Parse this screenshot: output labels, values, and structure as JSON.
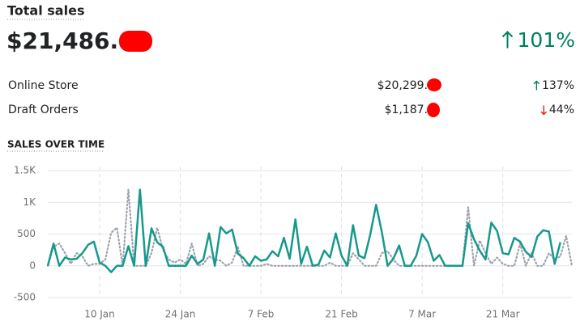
{
  "header": {
    "title": "Total sales",
    "total": "$21,486.",
    "change": "101%",
    "change_direction": "up"
  },
  "breakdown": [
    {
      "label": "Online Store",
      "value": "$20,299.",
      "change": "137%",
      "change_direction": "up"
    },
    {
      "label": "Draft Orders",
      "value": "$1,187.",
      "change": "44%",
      "change_direction": "down"
    }
  ],
  "chart_data": {
    "type": "line",
    "title": "SALES OVER TIME",
    "categories": [
      null,
      null,
      null,
      null,
      null,
      null,
      null,
      null,
      null,
      "10 Jan",
      null,
      null,
      null,
      null,
      null,
      null,
      null,
      null,
      null,
      null,
      null,
      null,
      null,
      "24 Jan",
      null,
      null,
      null,
      null,
      null,
      null,
      null,
      null,
      null,
      null,
      null,
      null,
      null,
      "7 Feb",
      null,
      null,
      null,
      null,
      null,
      null,
      null,
      null,
      null,
      null,
      null,
      null,
      null,
      "21 Feb",
      null,
      null,
      null,
      null,
      null,
      null,
      null,
      null,
      null,
      null,
      null,
      null,
      null,
      "7 Mar",
      null,
      null,
      null,
      null,
      null,
      null,
      null,
      null,
      null,
      null,
      null,
      null,
      null,
      "21 Mar",
      null,
      null,
      null,
      null,
      null,
      null,
      null,
      null,
      null,
      null,
      null,
      null
    ],
    "series": [
      {
        "color": "#16998c",
        "style": "solid",
        "values": [
          0,
          350,
          0,
          130,
          100,
          110,
          200,
          330,
          380,
          50,
          0,
          -100,
          0,
          0,
          310,
          0,
          1200,
          0,
          590,
          370,
          300,
          0,
          0,
          0,
          0,
          160,
          30,
          100,
          510,
          0,
          610,
          510,
          570,
          190,
          120,
          0,
          150,
          80,
          100,
          230,
          150,
          440,
          110,
          730,
          30,
          300,
          0,
          20,
          240,
          130,
          510,
          160,
          0,
          640,
          160,
          120,
          500,
          960,
          530,
          0,
          110,
          320,
          0,
          0,
          160,
          500,
          370,
          80,
          170,
          0,
          0,
          0,
          0,
          670,
          420,
          240,
          100,
          680,
          550,
          200,
          180,
          440,
          380,
          220,
          140,
          460,
          560,
          540,
          30,
          370,
          null,
          null
        ]
      },
      {
        "color": "#9ea3ad",
        "style": "dotted",
        "values": [
          0,
          300,
          350,
          200,
          30,
          200,
          150,
          0,
          30,
          30,
          100,
          520,
          600,
          0,
          1200,
          0,
          0,
          0,
          200,
          600,
          250,
          100,
          50,
          100,
          30,
          350,
          0,
          30,
          150,
          100,
          80,
          0,
          50,
          300,
          0,
          0,
          0,
          0,
          30,
          0,
          0,
          0,
          0,
          0,
          0,
          0,
          0,
          0,
          0,
          50,
          0,
          0,
          0,
          200,
          100,
          0,
          0,
          0,
          200,
          230,
          100,
          0,
          0,
          0,
          0,
          0,
          0,
          0,
          0,
          0,
          0,
          0,
          0,
          920,
          0,
          400,
          200,
          30,
          130,
          30,
          0,
          0,
          350,
          0,
          200,
          0,
          0,
          200,
          100,
          150,
          470,
          0
        ]
      }
    ],
    "ylim": [
      -500,
      1500
    ],
    "yticks": [
      {
        "value": 1500,
        "label": "1.5K"
      },
      {
        "value": 1000,
        "label": "1K"
      },
      500,
      0,
      -500
    ],
    "grid": true
  }
}
